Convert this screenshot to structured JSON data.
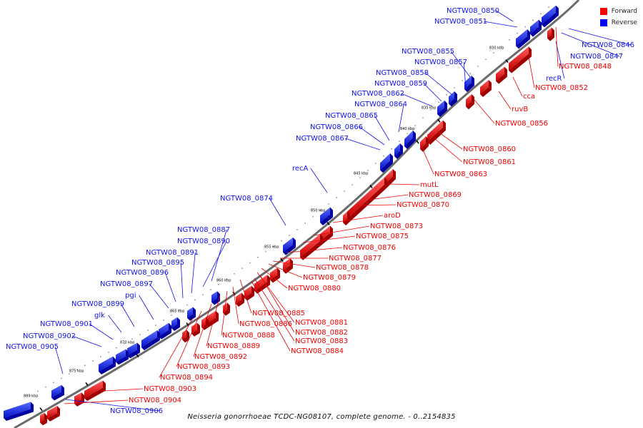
{
  "legend": {
    "forward_label": "Forward",
    "reverse_label": "Reverse",
    "forward_color": "#ff0000",
    "reverse_color": "#0000ff"
  },
  "caption": "Neisseria gonorrhoeae TCDC-NG08107, complete genome. - 0..2154835",
  "colors": {
    "forward": "#ee0000",
    "reverse": "#1111ee",
    "backbone": "#6b6b6b"
  },
  "ticks": [
    "830 kbp",
    "835 kbp",
    "840 kbp",
    "845 kbp",
    "850 kbp",
    "855 kbp",
    "860 kbp",
    "865 kbp",
    "870 kbp",
    "875 kbp",
    "880 kbp"
  ],
  "reverse_genes": [
    "NGTW08_0850",
    "NGTW08_0851",
    "NGTW08_0846",
    "NGTW08_0847",
    "recR",
    "NGTW08_0855",
    "NGTW08_0857",
    "NGTW08_0858",
    "NGTW08_0859",
    "NGTW08_0862",
    "NGTW08_0864",
    "NGTW08_0865",
    "NGTW08_0866",
    "NGTW08_0867",
    "recA",
    "NGTW08_0874",
    "NGTW08_0887",
    "NGTW08_0890",
    "NGTW08_0891",
    "NGTW08_0895",
    "NGTW08_0896",
    "NGTW08_0897",
    "pgi",
    "NGTW08_0899",
    "glk",
    "NGTW08_0901",
    "NGTW08_0902",
    "NGTW08_0905",
    "NGTW08_0906"
  ],
  "forward_genes": [
    "NGTW08_0848",
    "NGTW08_0852",
    "cca",
    "ruvB",
    "NGTW08_0856",
    "NGTW08_0860",
    "NGTW08_0861",
    "NGTW08_0863",
    "mutL",
    "NGTW08_0869",
    "NGTW08_0870",
    "aroD",
    "NGTW08_0873",
    "NGTW08_0875",
    "NGTW08_0876",
    "NGTW08_0877",
    "NGTW08_0878",
    "NGTW08_0879",
    "NGTW08_0880",
    "NGTW08_0881",
    "NGTW08_0882",
    "NGTW08_0883",
    "NGTW08_0884",
    "NGTW08_0885",
    "NGTW08_0886",
    "NGTW08_0888",
    "NGTW08_0889",
    "NGTW08_0892",
    "NGTW08_0893",
    "NGTW08_0894",
    "NGTW08_0903",
    "NGTW08_0904"
  ]
}
